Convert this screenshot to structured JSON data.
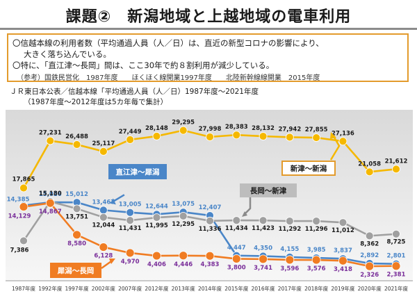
{
  "title": "課題②　新潟地域と上越地域の電車利用",
  "notes": {
    "line1": "〇信越本線の利用者数（平均通過人員（人／日）は、直近の新型コロナの影響により、",
    "line2": "大きく落ち込んでいる。",
    "line3": "〇特に、「直江津～長岡」間は、ここ30年で約８割利用が減少している。",
    "line4": "（参考）国鉄民営化　1987年度　　ほくほく線開業1997年度　　北陸新幹線線開業　2015年度"
  },
  "caption": {
    "line1": "ＪＲ東日本公表／信越本線「平均通過人員（人／日）1987年度～2021年度",
    "line2": "（1987年度～2012年度は5カ年毎で集計）"
  },
  "colors": {
    "niitsu": "#f5b800",
    "naoetsu": "#4a86c8",
    "nagaoka": "#a0a0a0",
    "saigata": "#f07c22",
    "purple_label": "#7a2f9a",
    "plot_bg": "#ececec"
  },
  "chart_data": {
    "type": "line",
    "categories": [
      "1987年度",
      "1992年度",
      "1997年度",
      "2002年度",
      "2007年度",
      "2012年度",
      "2013年度",
      "2014年度",
      "2015年度",
      "2016年度",
      "2017年度",
      "2018年度",
      "2019年度",
      "2020年度",
      "2021年度"
    ],
    "ylim": [
      0,
      32000
    ],
    "series": [
      {
        "name": "新津～新潟",
        "values": [
          17865,
          27231,
          26488,
          25117,
          27449,
          28148,
          29295,
          27998,
          28383,
          28132,
          27942,
          27855,
          27136,
          21058,
          21612
        ],
        "color_key": "niitsu",
        "label_color": "#1a1a1a"
      },
      {
        "name": "直江津～犀潟",
        "values": [
          14385,
          15026,
          15012,
          13467,
          13005,
          12644,
          13075,
          12407,
          4447,
          4350,
          4155,
          3985,
          3837,
          2892,
          2801
        ],
        "color_key": "naoetsu",
        "label_color": "#4a86c8"
      },
      {
        "name": "長岡～新津",
        "values": [
          7386,
          15180,
          13751,
          12044,
          11431,
          11995,
          12295,
          11336,
          11434,
          11423,
          11292,
          11296,
          11012,
          8362,
          8725
        ],
        "color_key": "nagaoka",
        "label_color": "#1a1a1a"
      },
      {
        "name": "犀潟～長岡",
        "values": [
          14129,
          14867,
          8580,
          6128,
          4970,
          4406,
          4446,
          4383,
          3800,
          3741,
          3596,
          3576,
          3418,
          2326,
          2381
        ],
        "color_key": "saigata",
        "label_color": "#7a2f9a"
      }
    ],
    "value_labels": [
      [
        "17,865",
        "27,231",
        "26,488",
        "25,117",
        "27,449",
        "28,148",
        "29,295",
        "27,998",
        "28,383",
        "28,132",
        "27,942",
        "27,855",
        "27,136",
        "21,058",
        "21,612"
      ],
      [
        "14,385",
        "15,026",
        "15,012",
        "13,467",
        "13,005",
        "12,644",
        "13,075",
        "12,407",
        "4,447",
        "4,350",
        "4,155",
        "3,985",
        "3,837",
        "2,892",
        "2,801"
      ],
      [
        "7,386",
        "15,180",
        "13,751",
        "12,044",
        "11,431",
        "11,995",
        "12,295",
        "11,336",
        "11,434",
        "11,423",
        "11,292",
        "11,296",
        "11,012",
        "8,362",
        "8,725"
      ],
      [
        "14,129",
        "14,867",
        "8,580",
        "6,128",
        "4,970",
        "4,406",
        "4,446",
        "4,383",
        "3,800",
        "3,741",
        "3,596",
        "3,576",
        "3,418",
        "2,326",
        "2,381"
      ]
    ],
    "callouts": [
      {
        "text": "直江津～犀潟",
        "series": 1,
        "style": "blue-box"
      },
      {
        "text": "長岡～新津",
        "series": 2,
        "style": "gray-box"
      },
      {
        "text": "新津～新潟",
        "series": 0,
        "style": "orange-border"
      },
      {
        "text": "犀潟～長岡",
        "series": 3,
        "style": "orange-fill"
      }
    ]
  }
}
